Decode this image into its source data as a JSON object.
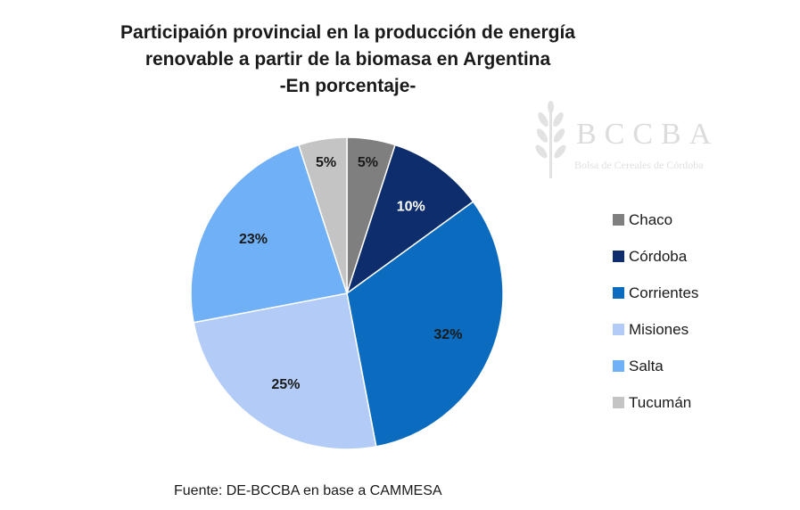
{
  "chart_data": {
    "type": "pie",
    "title": [
      "Participaión provincial en la producción de energía",
      "renovable a partir de la biomasa en Argentina",
      "-En porcentaje-"
    ],
    "categories": [
      "Chaco",
      "Córdoba",
      "Corrientes",
      "Misiones",
      "Salta",
      "Tucumán"
    ],
    "values": [
      5,
      10,
      32,
      25,
      23,
      5
    ],
    "labels": [
      "5%",
      "10%",
      "32%",
      "25%",
      "23%",
      "5%"
    ],
    "colors": [
      "#7f7f7f",
      "#0d2d6c",
      "#0b6bbf",
      "#b3ccf7",
      "#6fb0f7",
      "#c4c4c4"
    ],
    "label_colors": [
      "#1a1a1a",
      "#ffffff",
      "#1a1a1a",
      "#1a1a1a",
      "#1a1a1a",
      "#1a1a1a"
    ],
    "legend_position": "right",
    "start_angle": "12 o'clock",
    "direction": "clockwise"
  },
  "source": "Fuente: DE-BCCBA en base a CAMMESA",
  "logo": {
    "text": "BCCBA",
    "subtitle": "Bolsa de Cereales de Córdoba",
    "icon": "wheat-icon"
  }
}
